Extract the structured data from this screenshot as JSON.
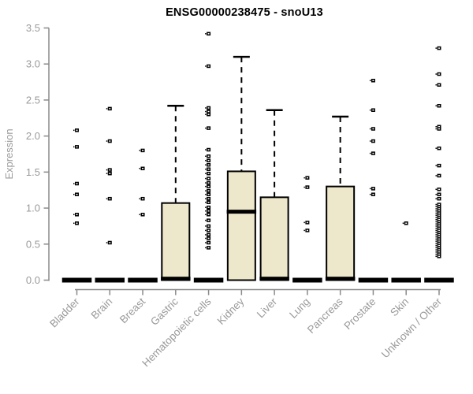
{
  "chart_data": {
    "type": "boxplot",
    "title": "ENSG00000238475 - snoU13",
    "xlabel": "",
    "ylabel": "Expression",
    "ylim": [
      0,
      3.5
    ],
    "yticks": [
      0.0,
      0.5,
      1.0,
      1.5,
      2.0,
      2.5,
      3.0,
      3.5
    ],
    "grid": false,
    "legend": "none",
    "categories": [
      "Bladder",
      "Brain",
      "Breast",
      "Gastric",
      "Hematopoietic cells",
      "Kidney",
      "Liver",
      "Lung",
      "Pancreas",
      "Prostate",
      "Skin",
      "Unknown / Other"
    ],
    "series": [
      {
        "name": "Bladder",
        "q1": 0,
        "median": 0,
        "q3": 0,
        "whisker_low": 0,
        "whisker_high": 0,
        "outliers": [
          2.08,
          1.85,
          1.34,
          1.19,
          0.91,
          0.79
        ]
      },
      {
        "name": "Brain",
        "q1": 0,
        "median": 0,
        "q3": 0,
        "whisker_low": 0,
        "whisker_high": 0,
        "outliers": [
          2.38,
          1.93,
          1.53,
          1.48,
          1.13,
          0.52
        ]
      },
      {
        "name": "Breast",
        "q1": 0,
        "median": 0,
        "q3": 0,
        "whisker_low": 0,
        "whisker_high": 0,
        "outliers": [
          1.8,
          1.55,
          1.13,
          0.91
        ]
      },
      {
        "name": "Gastric",
        "q1": 0,
        "median": 0.02,
        "q3": 1.07,
        "whisker_low": 0,
        "whisker_high": 2.42,
        "outliers": []
      },
      {
        "name": "Hematopoietic cells",
        "q1": 0,
        "median": 0,
        "q3": 0,
        "whisker_low": 0,
        "whisker_high": 0,
        "outliers": [
          3.42,
          2.97,
          2.39,
          2.34,
          2.3,
          2.11,
          1.81,
          1.72,
          1.66,
          1.6,
          1.54,
          1.48,
          1.41,
          1.35,
          1.3,
          1.24,
          1.19,
          1.13,
          1.08,
          1.01,
          0.96,
          0.91,
          0.83,
          0.75,
          0.69,
          0.63,
          0.58,
          0.52,
          0.45
        ]
      },
      {
        "name": "Kidney",
        "q1": 0,
        "median": 0.95,
        "q3": 1.51,
        "whisker_low": 0,
        "whisker_high": 3.1,
        "outliers": []
      },
      {
        "name": "Liver",
        "q1": 0,
        "median": 0.02,
        "q3": 1.15,
        "whisker_low": 0,
        "whisker_high": 2.36,
        "outliers": []
      },
      {
        "name": "Lung",
        "q1": 0,
        "median": 0,
        "q3": 0,
        "whisker_low": 0,
        "whisker_high": 0,
        "outliers": [
          1.42,
          1.29,
          0.8,
          0.69
        ]
      },
      {
        "name": "Pancreas",
        "q1": 0,
        "median": 0.02,
        "q3": 1.3,
        "whisker_low": 0,
        "whisker_high": 2.27,
        "outliers": []
      },
      {
        "name": "Prostate",
        "q1": 0,
        "median": 0,
        "q3": 0,
        "whisker_low": 0,
        "whisker_high": 0,
        "outliers": [
          2.77,
          2.36,
          2.1,
          1.93,
          1.76,
          1.27,
          1.19
        ]
      },
      {
        "name": "Skin",
        "q1": 0,
        "median": 0,
        "q3": 0,
        "whisker_low": 0,
        "whisker_high": 0,
        "outliers": [
          0.79
        ]
      },
      {
        "name": "Unknown / Other",
        "q1": 0,
        "median": 0,
        "q3": 0,
        "whisker_low": 0,
        "whisker_high": 0,
        "outliers": [
          3.22,
          2.86,
          2.71,
          2.42,
          2.13,
          2.1,
          1.83,
          1.59,
          1.45,
          1.26,
          1.19,
          1.13,
          1.05,
          1.02,
          0.99,
          0.96,
          0.93,
          0.9,
          0.87,
          0.84,
          0.81,
          0.78,
          0.75,
          0.72,
          0.69,
          0.66,
          0.63,
          0.6,
          0.57,
          0.54,
          0.51,
          0.48,
          0.45,
          0.42,
          0.39,
          0.36,
          0.33
        ]
      }
    ],
    "colors": {
      "box_fill": "#EDE7CB",
      "box_border": "#000000",
      "median": "#000000",
      "whisker": "#000000",
      "outlier": "#000000",
      "axis": "#8A8A8A",
      "tick_label": "#9A9A9A",
      "title": "#000000"
    }
  }
}
